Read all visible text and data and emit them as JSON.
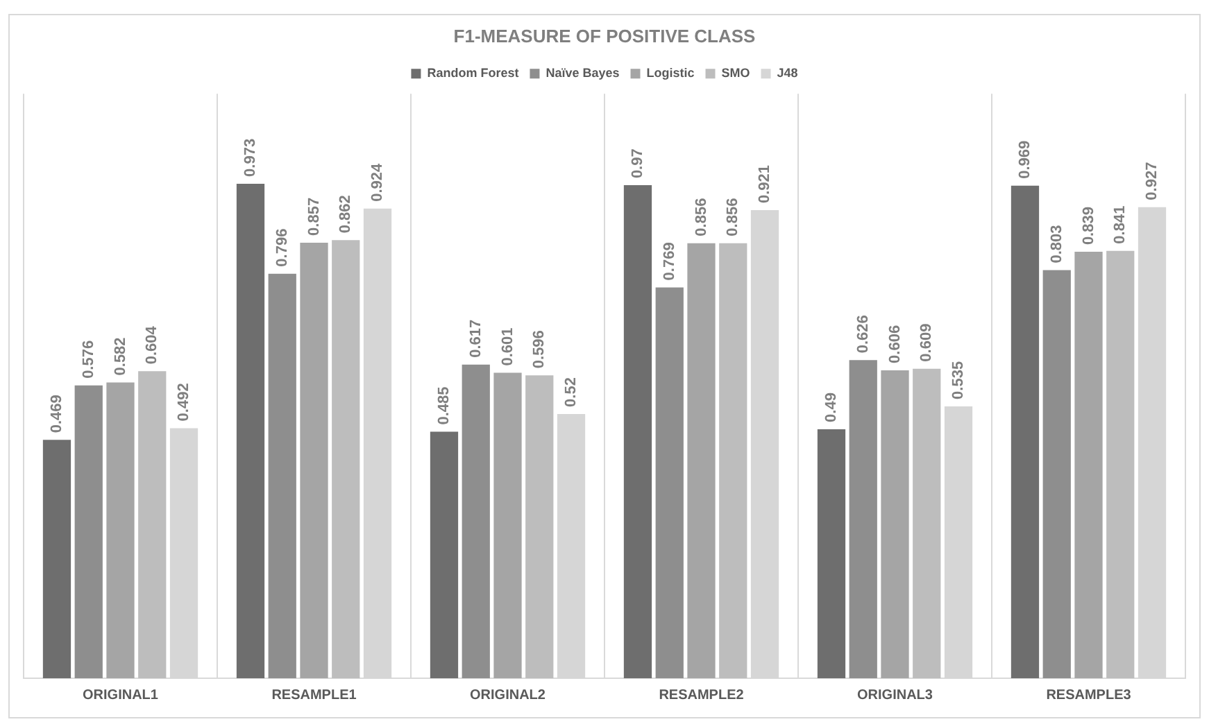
{
  "chart_data": {
    "type": "bar",
    "title": "F1-MEASURE OF POSITIVE CLASS",
    "categories": [
      "ORIGINAL1",
      "RESAMPLE1",
      "ORIGINAL2",
      "RESAMPLE2",
      "ORIGINAL3",
      "RESAMPLE3"
    ],
    "series": [
      {
        "name": "Random Forest",
        "color": "#6e6e6e",
        "values": [
          0.469,
          0.973,
          0.485,
          0.97,
          0.49,
          0.969
        ]
      },
      {
        "name": "Naïve Bayes",
        "color": "#8e8e8e",
        "values": [
          0.576,
          0.796,
          0.617,
          0.769,
          0.626,
          0.803
        ]
      },
      {
        "name": "Logistic",
        "color": "#a5a5a5",
        "values": [
          0.582,
          0.857,
          0.601,
          0.856,
          0.606,
          0.839
        ]
      },
      {
        "name": "SMO",
        "color": "#bdbdbd",
        "values": [
          0.604,
          0.862,
          0.596,
          0.856,
          0.609,
          0.841
        ]
      },
      {
        "name": "J48",
        "color": "#d6d6d6",
        "values": [
          0.492,
          0.924,
          0.52,
          0.921,
          0.535,
          0.927
        ]
      }
    ],
    "ylim": [
      0,
      1.15
    ],
    "data_labels": true,
    "grid": "x",
    "legend": "top",
    "tick_labels": "x"
  }
}
